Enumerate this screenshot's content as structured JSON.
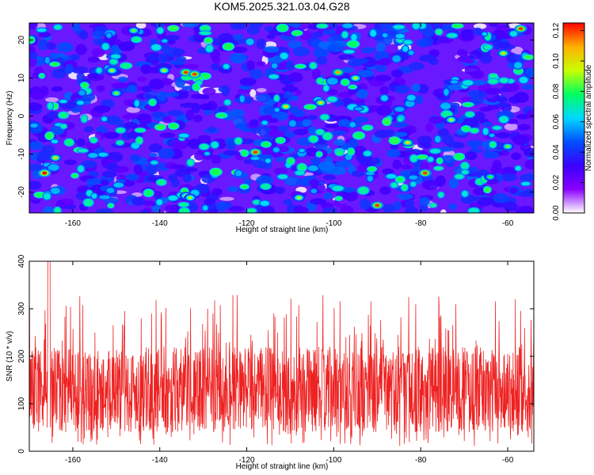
{
  "title": "KOM5.2025.321.03.04.G28",
  "chart_data": [
    {
      "type": "heatmap",
      "name": "spectrogram",
      "title": "KOM5.2025.321.03.04.G28",
      "xlabel": "Height of straight line (km)",
      "ylabel": "Frequency (Hz)",
      "xlim": [
        -170,
        -54
      ],
      "ylim": [
        -25.5,
        24.5
      ],
      "xticks": [
        -160,
        -140,
        -120,
        -100,
        -80,
        -60
      ],
      "yticks": [
        -20,
        -10,
        0,
        10,
        20
      ],
      "colorbar": {
        "label": "Normalized spectral amplitude",
        "range": [
          0,
          0.125
        ],
        "ticks": [
          "0.00",
          "0.02",
          "0.04",
          "0.06",
          "0.08",
          "0.10",
          "0.12"
        ],
        "colormap": [
          "#ffffff",
          "#8a00ff",
          "#3a00ff",
          "#0050ff",
          "#00d8ff",
          "#00ff60",
          "#c8ff00",
          "#ffb000",
          "#ff0000"
        ]
      },
      "peaks": [
        {
          "x": -166.5,
          "y": -15,
          "v": 0.125
        },
        {
          "x": -164,
          "y": -11,
          "v": 0.1
        },
        {
          "x": -151,
          "y": 12,
          "v": 0.09
        },
        {
          "x": -150,
          "y": 6,
          "v": 0.085
        },
        {
          "x": -146,
          "y": 22.5,
          "v": 0.085
        },
        {
          "x": -139,
          "y": 12,
          "v": 0.09
        },
        {
          "x": -134,
          "y": 11.5,
          "v": 0.12
        },
        {
          "x": -132,
          "y": 11,
          "v": 0.12
        },
        {
          "x": -134,
          "y": -21,
          "v": 0.09
        },
        {
          "x": -133,
          "y": -21.5,
          "v": 0.09
        },
        {
          "x": -118,
          "y": -9.5,
          "v": 0.12
        },
        {
          "x": -111,
          "y": 2.5,
          "v": 0.1
        },
        {
          "x": -108,
          "y": -21.5,
          "v": 0.09
        },
        {
          "x": -103,
          "y": 3.5,
          "v": 0.1
        },
        {
          "x": -99,
          "y": 11.5,
          "v": 0.11
        },
        {
          "x": -95,
          "y": 10,
          "v": 0.09
        },
        {
          "x": -90,
          "y": -23.5,
          "v": 0.12
        },
        {
          "x": -83,
          "y": -7,
          "v": 0.1
        },
        {
          "x": -79,
          "y": -15,
          "v": 0.12
        },
        {
          "x": -73,
          "y": -1,
          "v": 0.09
        },
        {
          "x": -61,
          "y": 16.5,
          "v": 0.1
        },
        {
          "x": -57,
          "y": 23,
          "v": 0.12
        },
        {
          "x": -60,
          "y": -8,
          "v": 0.085
        },
        {
          "x": -64,
          "y": -16,
          "v": 0.08
        }
      ]
    },
    {
      "type": "line",
      "name": "snr",
      "xlabel": "Height of straight line (km)",
      "ylabel": "SNR (10 * v/v)",
      "xlim": [
        -170,
        -54
      ],
      "ylim": [
        0,
        400
      ],
      "xticks": [
        -160,
        -140,
        -120,
        -100,
        -80,
        -60
      ],
      "yticks": [
        0,
        100,
        200,
        300,
        400
      ],
      "color": "#ee2222",
      "series": {
        "name": "SNR",
        "n_points": 1800,
        "typical_range": [
          40,
          220
        ],
        "max_value": 400,
        "max_at_x": -165.5
      }
    }
  ]
}
